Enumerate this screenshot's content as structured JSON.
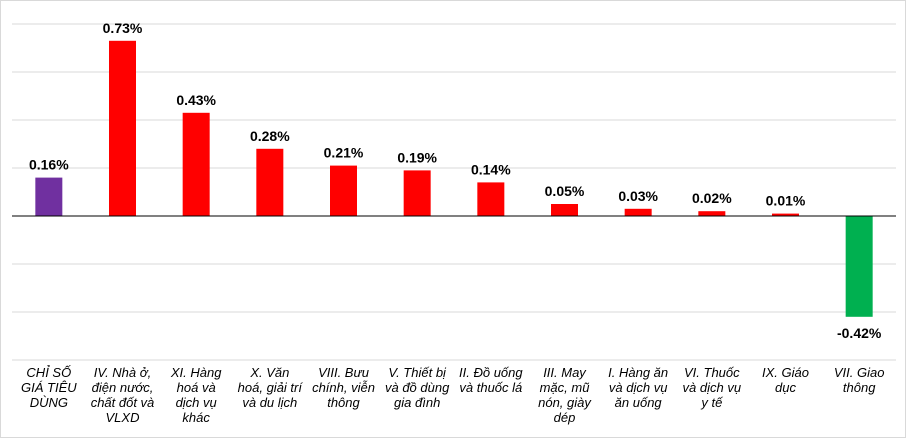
{
  "chart_data": {
    "type": "bar",
    "title": "",
    "xlabel": "",
    "ylabel": "",
    "ylim": [
      -0.6,
      0.8
    ],
    "grid": true,
    "legend": "none",
    "categories": [
      [
        "CHỈ SỐ",
        "GIÁ TIÊU",
        "DÙNG"
      ],
      [
        "IV. Nhà ở,",
        "điện nước,",
        "chất đốt và",
        "VLXD"
      ],
      [
        "XI. Hàng",
        "hoá và",
        "dịch vụ",
        "khác"
      ],
      [
        "X. Văn",
        "hoá, giải trí",
        "và du lịch"
      ],
      [
        "VIII. Bưu",
        "chính, viễn",
        "thông"
      ],
      [
        "V. Thiết bị",
        "và đồ dùng",
        "gia đình"
      ],
      [
        "II. Đồ uống",
        "và thuốc lá"
      ],
      [
        "III. May",
        "mặc, mũ",
        "nón, giày",
        "dép"
      ],
      [
        "I. Hàng ăn",
        "và dịch vụ",
        "ăn uống"
      ],
      [
        "VI. Thuốc",
        "và dịch vụ",
        "y tế"
      ],
      [
        "IX. Giáo",
        "dục"
      ],
      [
        "VII. Giao",
        "thông"
      ]
    ],
    "values": [
      0.16,
      0.73,
      0.43,
      0.28,
      0.21,
      0.19,
      0.14,
      0.05,
      0.03,
      0.02,
      0.01,
      -0.42
    ],
    "value_labels": [
      "0.16%",
      "0.73%",
      "0.43%",
      "0.28%",
      "0.21%",
      "0.19%",
      "0.14%",
      "0.05%",
      "0.03%",
      "0.02%",
      "0.01%",
      "-0.42%"
    ],
    "colors": {
      "index": "#7030a0",
      "positive": "#ff0000",
      "negative": "#00b050",
      "gridline": "#d9d9d9",
      "axis": "#000000"
    }
  }
}
